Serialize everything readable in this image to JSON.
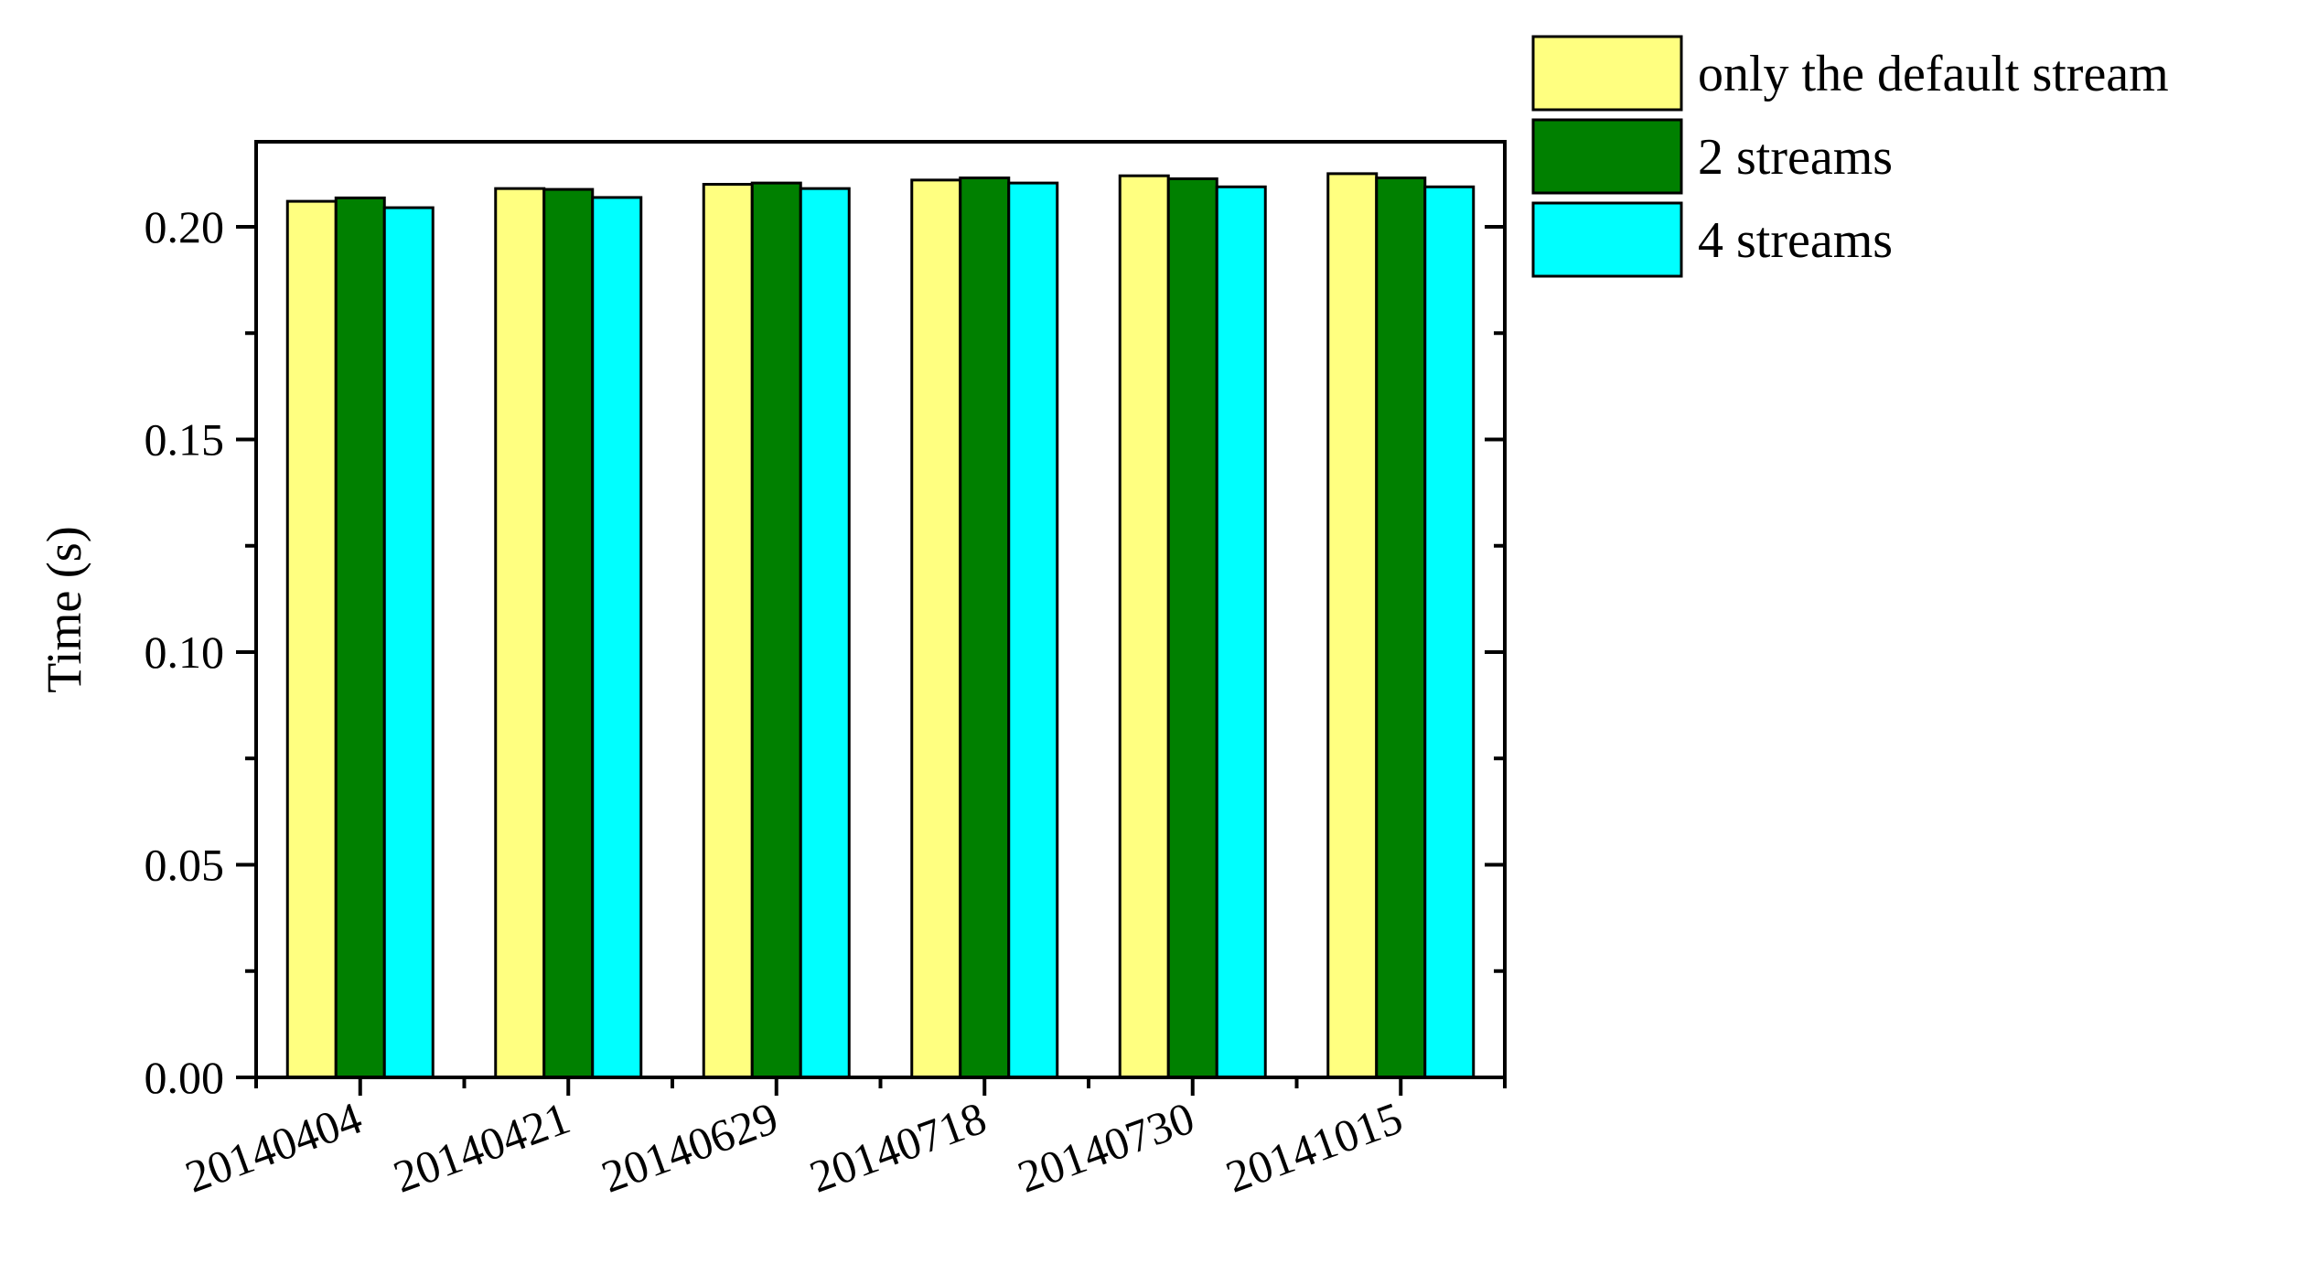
{
  "chart_data": {
    "type": "bar",
    "title": "",
    "xlabel": "",
    "ylabel": "Time (s)",
    "ylim": [
      0,
      0.22
    ],
    "yticks": [
      "0.00",
      "0.05",
      "0.10",
      "0.15",
      "0.20"
    ],
    "categories": [
      "20140404",
      "20140421",
      "20140629",
      "20140718",
      "20140730",
      "20141015"
    ],
    "series": [
      {
        "name": "only the default stream",
        "color": "#FFFF80",
        "values": [
          0.206,
          0.209,
          0.21,
          0.211,
          0.212,
          0.2125
        ]
      },
      {
        "name": "2 streams",
        "color": "#008000",
        "values": [
          0.2068,
          0.2088,
          0.2103,
          0.2115,
          0.2113,
          0.2115
        ]
      },
      {
        "name": "4 streams",
        "color": "#00FFFF",
        "values": [
          0.2045,
          0.2069,
          0.209,
          0.2103,
          0.2094,
          0.2094
        ]
      }
    ],
    "grid": false,
    "legend_position": "top-right, outside plot"
  }
}
